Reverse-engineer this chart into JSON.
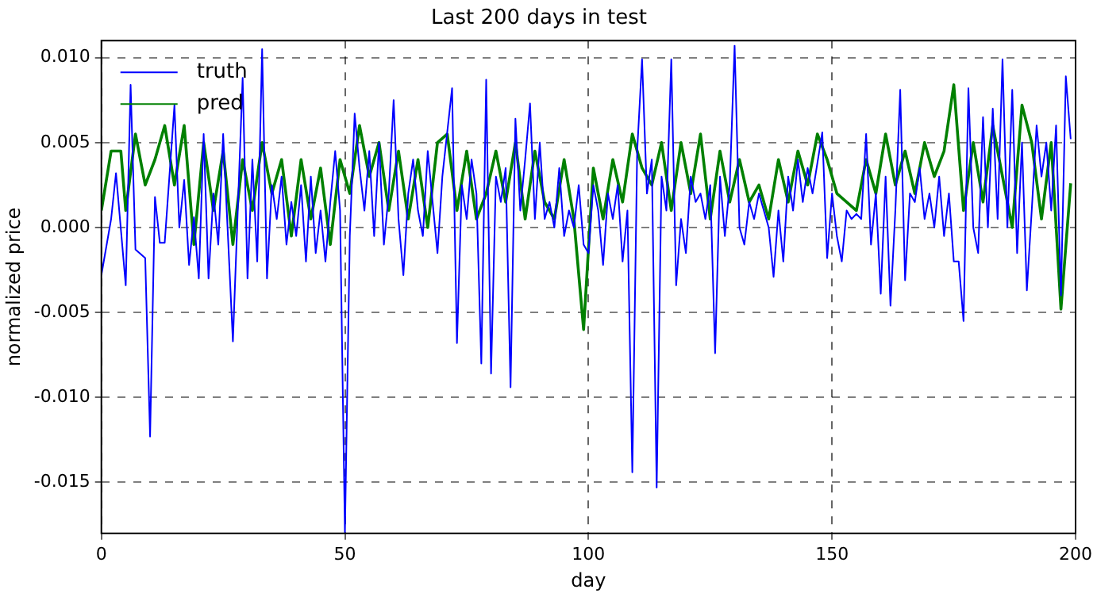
{
  "chart_data": {
    "type": "line",
    "title": "Last 200 days in test",
    "xlabel": "day",
    "ylabel": "normalized price",
    "xlim": [
      0,
      200
    ],
    "xticks": [
      0,
      50,
      100,
      150,
      200
    ],
    "ylim": [
      -0.018,
      0.011
    ],
    "yticks": [
      {
        "value": -0.015,
        "label": "-0.015"
      },
      {
        "value": -0.01,
        "label": "-0.010"
      },
      {
        "value": -0.005,
        "label": "-0.005"
      },
      {
        "value": 0,
        "label": "0.000"
      },
      {
        "value": 0.005,
        "label": "0.005"
      },
      {
        "value": 0.01,
        "label": "0.010"
      }
    ],
    "grid": true,
    "legend": "top left",
    "line_style": "solid",
    "marker": "none",
    "series": [
      {
        "name": "truth",
        "color": "#0000ff",
        "x": [
          0,
          2,
          3,
          5,
          6,
          7,
          9,
          10,
          11,
          12,
          13,
          15,
          16,
          17,
          18,
          19,
          20,
          21,
          22,
          23,
          24,
          25,
          27,
          28,
          29,
          30,
          31,
          32,
          33,
          34,
          35,
          36,
          37,
          38,
          39,
          40,
          41,
          42,
          43,
          44,
          45,
          46,
          47,
          48,
          49,
          50,
          51,
          52,
          53,
          54,
          55,
          56,
          57,
          58,
          59,
          60,
          61,
          62,
          63,
          64,
          65,
          66,
          67,
          68,
          69,
          70,
          72,
          73,
          74,
          75,
          76,
          77,
          78,
          79,
          80,
          81,
          82,
          83,
          84,
          85,
          86,
          87,
          88,
          89,
          90,
          91,
          92,
          93,
          94,
          95,
          96,
          97,
          98,
          99,
          100,
          101,
          102,
          103,
          104,
          105,
          106,
          107,
          108,
          109,
          110,
          111,
          112,
          113,
          114,
          115,
          116,
          117,
          118,
          119,
          120,
          121,
          122,
          123,
          124,
          125,
          126,
          127,
          128,
          129,
          130,
          131,
          132,
          133,
          134,
          135,
          136,
          137,
          138,
          139,
          140,
          141,
          142,
          143,
          144,
          145,
          146,
          148,
          149,
          150,
          151,
          152,
          153,
          154,
          155,
          156,
          157,
          158,
          159,
          160,
          161,
          162,
          163,
          164,
          165,
          166,
          167,
          168,
          169,
          170,
          171,
          172,
          173,
          174,
          175,
          176,
          177,
          178,
          179,
          180,
          181,
          182,
          183,
          184,
          185,
          186,
          187,
          188,
          189,
          190,
          191,
          192,
          193,
          194,
          195,
          196,
          197,
          198,
          199
        ],
        "values": [
          -0.0028,
          0.0005,
          0.0032,
          -0.0034,
          0.0084,
          -0.0013,
          -0.0018,
          -0.0123,
          0.0018,
          -0.0009,
          -0.0009,
          0.0072,
          0.0,
          0.0028,
          -0.0022,
          0.0006,
          -0.003,
          0.0055,
          -0.003,
          0.002,
          -0.001,
          0.0055,
          -0.0067,
          0.001,
          0.0088,
          -0.003,
          0.004,
          -0.002,
          0.0105,
          -0.003,
          0.0025,
          0.0005,
          0.003,
          -0.001,
          0.0015,
          -0.0005,
          0.0025,
          -0.002,
          0.003,
          -0.0015,
          0.001,
          -0.002,
          0.0015,
          0.0045,
          0.001,
          -0.018,
          -0.0005,
          0.0067,
          0.0035,
          0.001,
          0.0045,
          -0.0005,
          0.005,
          -0.001,
          0.002,
          0.0075,
          0.0005,
          -0.0028,
          0.002,
          0.004,
          0.001,
          -0.0005,
          0.0045,
          0.0015,
          -0.0015,
          0.003,
          0.0082,
          -0.0068,
          0.0025,
          0.0005,
          0.004,
          0.002,
          -0.008,
          0.0087,
          -0.0086,
          0.003,
          0.0015,
          0.0035,
          -0.0094,
          0.0064,
          0.001,
          0.004,
          0.0073,
          0.0005,
          0.005,
          0.0005,
          0.0015,
          0.0,
          0.0035,
          -0.0005,
          0.001,
          0.0,
          0.0025,
          -0.001,
          -0.0015,
          0.0025,
          0.001,
          -0.0022,
          0.002,
          0.0005,
          0.0025,
          -0.002,
          0.001,
          -0.0144,
          0.0045,
          0.0099,
          0.002,
          0.004,
          -0.0153,
          0.003,
          0.001,
          0.0099,
          -0.0034,
          0.0005,
          -0.0015,
          0.003,
          0.0015,
          0.002,
          0.0005,
          0.0025,
          -0.0074,
          0.003,
          -0.0005,
          0.0025,
          0.0107,
          0.0,
          -0.001,
          0.0015,
          0.0005,
          0.002,
          0.001,
          0.0,
          -0.0029,
          0.001,
          -0.002,
          0.003,
          0.001,
          0.004,
          0.0015,
          0.0035,
          0.002,
          0.0056,
          -0.0018,
          0.002,
          -0.0005,
          -0.002,
          0.001,
          0.0005,
          0.0008,
          0.0005,
          0.0055,
          -0.001,
          0.002,
          -0.0039,
          0.003,
          -0.0046,
          0.001,
          0.0081,
          -0.0031,
          0.002,
          0.0015,
          0.0035,
          0.0005,
          0.002,
          0.0,
          0.003,
          -0.0005,
          0.002,
          -0.002,
          -0.002,
          -0.0055,
          0.0082,
          0.0,
          -0.0015,
          0.0065,
          0.0,
          0.007,
          0.0005,
          0.0099,
          0.0,
          0.0081,
          -0.0015,
          0.005,
          -0.0037,
          0.001,
          0.006,
          0.003,
          0.005,
          0.001,
          0.006,
          -0.004,
          0.0089,
          0.0052
        ]
      },
      {
        "name": "pred",
        "color": "#008000",
        "x": [
          0,
          2,
          4,
          5,
          7,
          9,
          11,
          13,
          15,
          17,
          19,
          21,
          23,
          25,
          27,
          29,
          31,
          33,
          35,
          37,
          39,
          41,
          43,
          45,
          47,
          49,
          51,
          53,
          55,
          57,
          59,
          61,
          63,
          65,
          67,
          69,
          71,
          73,
          75,
          77,
          79,
          81,
          83,
          85,
          87,
          89,
          91,
          93,
          95,
          97,
          99,
          101,
          103,
          105,
          107,
          109,
          111,
          113,
          115,
          117,
          119,
          121,
          123,
          125,
          127,
          129,
          131,
          133,
          135,
          137,
          139,
          141,
          143,
          145,
          147,
          149,
          151,
          153,
          155,
          157,
          159,
          161,
          163,
          165,
          167,
          169,
          171,
          173,
          175,
          177,
          179,
          181,
          183,
          185,
          187,
          189,
          191,
          193,
          195,
          197,
          199
        ],
        "values": [
          0.001,
          0.0045,
          0.0045,
          0.001,
          0.0055,
          0.0025,
          0.004,
          0.006,
          0.0025,
          0.006,
          -0.001,
          0.005,
          0.001,
          0.0045,
          -0.001,
          0.004,
          0.001,
          0.005,
          0.002,
          0.004,
          -0.0005,
          0.004,
          0.0005,
          0.0035,
          -0.001,
          0.004,
          0.002,
          0.006,
          0.003,
          0.005,
          0.001,
          0.0045,
          0.0005,
          0.004,
          0.0,
          0.005,
          0.0055,
          0.001,
          0.0045,
          0.0005,
          0.002,
          0.0045,
          0.0015,
          0.005,
          0.0005,
          0.0045,
          0.0015,
          0.0005,
          0.004,
          0.0005,
          -0.006,
          0.0035,
          0.0005,
          0.004,
          0.0015,
          0.0055,
          0.0035,
          0.0025,
          0.005,
          0.001,
          0.005,
          0.002,
          0.0055,
          0.0005,
          0.0045,
          0.0015,
          0.004,
          0.0015,
          0.0025,
          0.0005,
          0.004,
          0.0015,
          0.0045,
          0.0025,
          0.0055,
          0.004,
          0.002,
          0.0015,
          0.001,
          0.004,
          0.002,
          0.0055,
          0.0025,
          0.0045,
          0.002,
          0.005,
          0.003,
          0.0045,
          0.0084,
          0.001,
          0.005,
          0.0015,
          0.006,
          0.003,
          0.0,
          0.0072,
          0.005,
          0.0005,
          0.005,
          -0.0048,
          0.0026
        ]
      }
    ]
  }
}
